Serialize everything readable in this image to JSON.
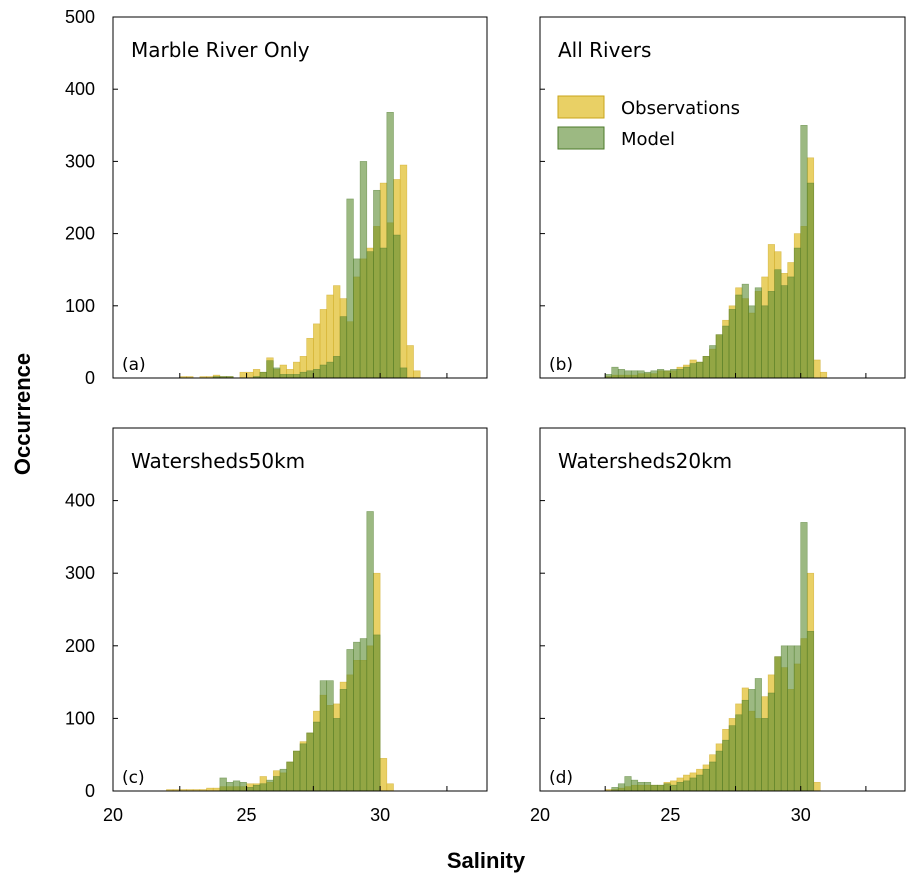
{
  "colors": {
    "observations": "#e2c032",
    "model": "#5a8a2e",
    "observations_edge": "#c9a41a",
    "model_edge": "#4d7a2a"
  },
  "axis_labels": {
    "x": "Salinity",
    "y": "Occurrence"
  },
  "legend": {
    "observations": "Observations",
    "model": "Model"
  },
  "chart_data": [
    {
      "type": "bar",
      "panel": "(a)",
      "title": "Marble River Only",
      "bin_width": 0.25,
      "xlim": [
        20,
        34
      ],
      "ylim": [
        0,
        500
      ],
      "xticks": [
        "20",
        "25",
        "30"
      ],
      "yticks": [
        "0",
        "100",
        "200",
        "300",
        "400",
        "500"
      ],
      "series": [
        {
          "name": "Observations",
          "x_start": 22.0,
          "values": [
            0,
            0,
            2,
            2,
            0,
            2,
            2,
            4,
            2,
            2,
            0,
            8,
            8,
            12,
            8,
            28,
            12,
            18,
            12,
            22,
            30,
            55,
            75,
            95,
            115,
            128,
            110,
            78,
            140,
            165,
            180,
            210,
            270,
            215,
            275,
            295,
            45,
            10
          ]
        },
        {
          "name": "Model",
          "x_start": 22.0,
          "values": [
            0,
            0,
            0,
            0,
            0,
            0,
            0,
            2,
            2,
            2,
            0,
            0,
            0,
            2,
            8,
            24,
            14,
            5,
            5,
            5,
            8,
            10,
            12,
            18,
            22,
            30,
            85,
            248,
            165,
            300,
            175,
            260,
            180,
            368,
            198,
            14,
            0,
            0
          ]
        }
      ]
    },
    {
      "type": "bar",
      "panel": "(b)",
      "title": "All Rivers",
      "bin_width": 0.25,
      "xlim": [
        20,
        34
      ],
      "ylim": [
        0,
        500
      ],
      "xticks": [
        "20",
        "25",
        "30"
      ],
      "yticks": [],
      "series": [
        {
          "name": "Observations",
          "x_start": 22.5,
          "values": [
            2,
            4,
            4,
            4,
            4,
            6,
            6,
            6,
            10,
            10,
            10,
            15,
            18,
            25,
            22,
            30,
            40,
            60,
            80,
            100,
            125,
            110,
            90,
            120,
            140,
            185,
            175,
            145,
            160,
            200,
            210,
            305,
            25,
            8,
            0
          ]
        },
        {
          "name": "Model",
          "x_start": 22.5,
          "values": [
            5,
            15,
            12,
            10,
            10,
            10,
            8,
            10,
            12,
            10,
            12,
            12,
            15,
            20,
            22,
            30,
            45,
            60,
            72,
            95,
            115,
            130,
            100,
            125,
            100,
            120,
            150,
            128,
            140,
            180,
            350,
            270,
            0,
            0,
            0
          ]
        }
      ]
    },
    {
      "type": "bar",
      "panel": "(c)",
      "title": "Watersheds50km",
      "bin_width": 0.25,
      "xlim": [
        20,
        34
      ],
      "ylim": [
        0,
        500
      ],
      "xticks": [
        "20",
        "25",
        "30"
      ],
      "yticks": [
        "0",
        "100",
        "200",
        "300",
        "400"
      ],
      "series": [
        {
          "name": "Observations",
          "x_start": 22.0,
          "values": [
            2,
            2,
            2,
            2,
            2,
            2,
            4,
            4,
            6,
            6,
            6,
            6,
            10,
            10,
            20,
            12,
            28,
            25,
            40,
            55,
            68,
            80,
            110,
            132,
            118,
            120,
            150,
            160,
            180,
            180,
            200,
            300,
            45,
            10
          ]
        },
        {
          "name": "Model",
          "x_start": 22.0,
          "values": [
            0,
            0,
            0,
            0,
            0,
            0,
            0,
            0,
            18,
            12,
            14,
            12,
            5,
            8,
            10,
            15,
            20,
            30,
            40,
            55,
            65,
            80,
            95,
            152,
            152,
            100,
            140,
            195,
            205,
            210,
            385,
            215,
            0,
            0
          ]
        }
      ]
    },
    {
      "type": "bar",
      "panel": "(d)",
      "title": "Watersheds20km",
      "bin_width": 0.25,
      "xlim": [
        20,
        34
      ],
      "ylim": [
        0,
        500
      ],
      "xticks": [
        "20",
        "25",
        "30"
      ],
      "yticks": [],
      "series": [
        {
          "name": "Observations",
          "x_start": 22.5,
          "values": [
            2,
            2,
            4,
            6,
            8,
            8,
            8,
            8,
            8,
            12,
            14,
            18,
            22,
            25,
            30,
            36,
            50,
            65,
            85,
            100,
            120,
            142,
            110,
            100,
            130,
            160,
            185,
            170,
            140,
            175,
            210,
            300,
            12,
            0
          ]
        },
        {
          "name": "Model",
          "x_start": 22.5,
          "values": [
            0,
            5,
            10,
            20,
            15,
            12,
            12,
            8,
            8,
            10,
            8,
            12,
            14,
            18,
            22,
            30,
            40,
            55,
            70,
            90,
            105,
            125,
            140,
            155,
            100,
            135,
            185,
            200,
            200,
            200,
            370,
            220,
            0,
            0
          ]
        }
      ]
    }
  ]
}
